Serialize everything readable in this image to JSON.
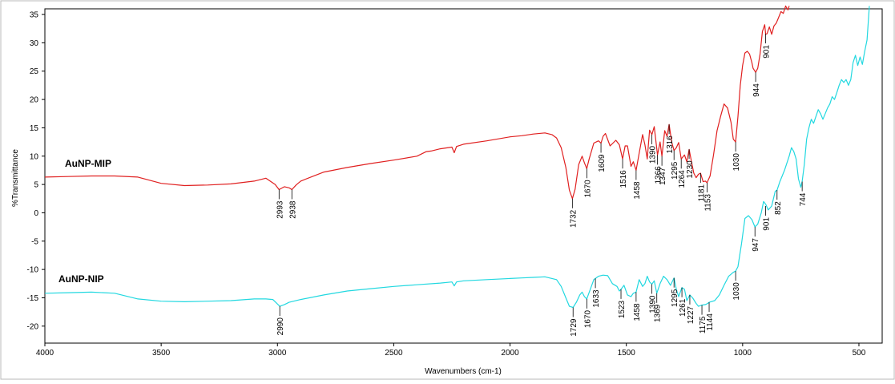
{
  "chart_data": {
    "type": "line",
    "xlabel": "Wavenumbers (cm-1)",
    "ylabel": "%Transmittance",
    "xlim": [
      4000,
      400
    ],
    "ylim": [
      -23,
      36
    ],
    "x_ticks": [
      "4000",
      "3500",
      "3000",
      "2500",
      "2000",
      "1500",
      "1000",
      "500"
    ],
    "y_ticks": [
      "35",
      "30",
      "25",
      "20",
      "15",
      "10",
      "5",
      "0",
      "-5",
      "-10",
      "-15",
      "-20"
    ],
    "colors": {
      "mip": "#e02020",
      "nip": "#22d8e0"
    },
    "series": [
      {
        "name": "AuNP-MIP",
        "color": "#e02020",
        "x": [
          4000,
          3900,
          3800,
          3700,
          3600,
          3500,
          3400,
          3300,
          3200,
          3100,
          3050,
          3010,
          2993,
          2970,
          2950,
          2938,
          2920,
          2900,
          2850,
          2800,
          2700,
          2600,
          2500,
          2400,
          2360,
          2340,
          2300,
          2250,
          2240,
          2230,
          2200,
          2100,
          2000,
          1950,
          1900,
          1850,
          1820,
          1800,
          1780,
          1760,
          1745,
          1732,
          1720,
          1705,
          1690,
          1680,
          1670,
          1660,
          1640,
          1620,
          1609,
          1600,
          1590,
          1570,
          1545,
          1530,
          1516,
          1505,
          1495,
          1480,
          1470,
          1458,
          1445,
          1430,
          1420,
          1410,
          1400,
          1390,
          1380,
          1366,
          1355,
          1347,
          1335,
          1325,
          1316,
          1305,
          1295,
          1285,
          1275,
          1264,
          1250,
          1240,
          1230,
          1220,
          1210,
          1200,
          1190,
          1181,
          1170,
          1160,
          1153,
          1140,
          1125,
          1110,
          1095,
          1080,
          1065,
          1050,
          1040,
          1030,
          1020,
          1010,
          1000,
          990,
          980,
          970,
          960,
          955,
          944,
          935,
          925,
          915,
          905,
          901,
          895,
          885,
          875,
          865,
          855,
          845,
          835,
          825,
          815,
          805,
          800
        ],
        "y": [
          6.3,
          6.4,
          6.5,
          6.5,
          6.3,
          5.2,
          4.8,
          4.9,
          5.1,
          5.6,
          6.1,
          5.0,
          4.1,
          4.6,
          4.4,
          4.1,
          4.9,
          5.6,
          6.4,
          7.2,
          8.0,
          8.7,
          9.3,
          10.0,
          10.8,
          10.9,
          11.3,
          11.6,
          10.6,
          11.7,
          12.1,
          12.7,
          13.4,
          13.6,
          13.9,
          14.1,
          13.8,
          13.2,
          11.5,
          8.0,
          4.0,
          2.5,
          4.2,
          8.5,
          10.0,
          8.8,
          7.8,
          9.5,
          12.3,
          12.7,
          12.3,
          13.5,
          14.0,
          11.8,
          12.8,
          12.0,
          9.5,
          11.8,
          11.8,
          8.2,
          9.0,
          7.5,
          10.5,
          13.8,
          12.0,
          9.5,
          14.6,
          13.8,
          15.2,
          10.2,
          12.5,
          10.0,
          14.5,
          13.5,
          15.6,
          12.5,
          11.0,
          11.5,
          12.4,
          9.5,
          10.2,
          9.0,
          11.2,
          9.0,
          7.0,
          6.2,
          6.8,
          7.0,
          5.5,
          5.6,
          5.3,
          6.5,
          10.2,
          14.5,
          17.0,
          19.2,
          18.5,
          16.0,
          13.0,
          12.5,
          17.0,
          22.5,
          26.0,
          28.2,
          28.5,
          28.0,
          26.5,
          25.5,
          24.8,
          25.5,
          28.0,
          32.0,
          33.2,
          31.5,
          31.6,
          32.8,
          31.5,
          33.0,
          33.5,
          34.5,
          35.5,
          35.2,
          36.5,
          35.8,
          36.5
        ]
      },
      {
        "name": "AuNP-NIP",
        "color": "#22d8e0",
        "x": [
          4000,
          3900,
          3800,
          3700,
          3600,
          3500,
          3400,
          3300,
          3200,
          3100,
          3050,
          3020,
          2990,
          2970,
          2950,
          2900,
          2800,
          2700,
          2600,
          2500,
          2400,
          2300,
          2250,
          2240,
          2230,
          2200,
          2100,
          2000,
          1950,
          1900,
          1850,
          1800,
          1780,
          1760,
          1745,
          1729,
          1715,
          1700,
          1690,
          1680,
          1670,
          1655,
          1640,
          1633,
          1620,
          1600,
          1580,
          1560,
          1540,
          1530,
          1523,
          1510,
          1495,
          1480,
          1470,
          1458,
          1445,
          1430,
          1420,
          1410,
          1400,
          1390,
          1380,
          1369,
          1355,
          1340,
          1325,
          1310,
          1295,
          1285,
          1275,
          1261,
          1250,
          1240,
          1227,
          1215,
          1200,
          1190,
          1175,
          1160,
          1150,
          1144,
          1120,
          1100,
          1080,
          1060,
          1040,
          1030,
          1020,
          1005,
          990,
          975,
          960,
          947,
          935,
          920,
          910,
          901,
          890,
          875,
          860,
          852,
          840,
          820,
          800,
          790,
          780,
          770,
          760,
          750,
          744,
          735,
          725,
          715,
          705,
          695,
          685,
          675,
          665,
          655,
          645,
          635,
          625,
          615,
          605,
          595,
          585,
          575,
          565,
          555,
          545,
          535,
          525,
          515,
          505,
          495,
          485,
          475,
          465,
          455
        ],
        "y": [
          -14.2,
          -14.1,
          -14.0,
          -14.2,
          -15.2,
          -15.6,
          -15.7,
          -15.6,
          -15.5,
          -15.2,
          -15.2,
          -15.3,
          -16.5,
          -16.2,
          -15.8,
          -15.3,
          -14.5,
          -13.8,
          -13.4,
          -13.0,
          -12.7,
          -12.4,
          -12.2,
          -12.9,
          -12.2,
          -12.0,
          -11.8,
          -11.6,
          -11.5,
          -11.4,
          -11.3,
          -11.8,
          -13.0,
          -15.0,
          -16.5,
          -16.7,
          -15.8,
          -14.5,
          -14.0,
          -14.8,
          -15.2,
          -13.5,
          -11.8,
          -11.6,
          -11.2,
          -11.0,
          -11.1,
          -12.5,
          -13.0,
          -13.8,
          -13.5,
          -12.8,
          -14.5,
          -14.8,
          -14.2,
          -14.0,
          -11.8,
          -13.0,
          -12.5,
          -11.2,
          -12.2,
          -12.6,
          -12.0,
          -14.2,
          -12.5,
          -11.2,
          -11.8,
          -12.8,
          -11.5,
          -13.5,
          -14.8,
          -13.2,
          -13.5,
          -15.5,
          -14.5,
          -15.0,
          -16.0,
          -16.5,
          -16.3,
          -16.2,
          -16.0,
          -15.8,
          -15.5,
          -14.5,
          -12.8,
          -11.2,
          -10.5,
          -10.3,
          -9.5,
          -5.5,
          -1.0,
          -0.5,
          -1.2,
          -2.5,
          -2.0,
          0.0,
          2.0,
          1.5,
          0.5,
          1.2,
          3.8,
          4.0,
          5.5,
          7.5,
          10.0,
          11.5,
          10.8,
          9.5,
          6.0,
          4.5,
          5.5,
          8.5,
          13.0,
          15.0,
          16.5,
          15.8,
          17.0,
          18.2,
          17.5,
          16.5,
          17.5,
          18.5,
          19.2,
          20.5,
          20.0,
          21.2,
          22.5,
          23.5,
          23.0,
          23.5,
          22.5,
          23.5,
          26.5,
          27.8,
          26.0,
          27.5,
          26.2,
          28.5,
          30.5,
          36.5
        ]
      }
    ],
    "peak_labels": {
      "mip": [
        {
          "x": 2993,
          "y": 4.1,
          "label": "2993"
        },
        {
          "x": 2938,
          "y": 4.1,
          "label": "2938"
        },
        {
          "x": 1732,
          "y": 2.5,
          "label": "1732"
        },
        {
          "x": 1670,
          "y": 7.8,
          "label": "1670"
        },
        {
          "x": 1609,
          "y": 12.3,
          "label": "1609"
        },
        {
          "x": 1516,
          "y": 9.5,
          "label": "1516"
        },
        {
          "x": 1458,
          "y": 7.5,
          "label": "1458"
        },
        {
          "x": 1390,
          "y": 13.8,
          "label": "1390"
        },
        {
          "x": 1366,
          "y": 10.2,
          "label": "1366"
        },
        {
          "x": 1347,
          "y": 10.0,
          "label": "1347"
        },
        {
          "x": 1316,
          "y": 15.6,
          "label": "1316"
        },
        {
          "x": 1295,
          "y": 11.0,
          "label": "1295"
        },
        {
          "x": 1264,
          "y": 9.5,
          "label": "1264"
        },
        {
          "x": 1230,
          "y": 11.2,
          "label": "1230"
        },
        {
          "x": 1181,
          "y": 7.0,
          "label": "1181"
        },
        {
          "x": 1153,
          "y": 5.3,
          "label": "1153"
        },
        {
          "x": 1030,
          "y": 12.5,
          "label": "1030"
        },
        {
          "x": 944,
          "y": 24.8,
          "label": "944"
        },
        {
          "x": 901,
          "y": 31.6,
          "label": "901"
        }
      ],
      "nip": [
        {
          "x": 2990,
          "y": -16.5,
          "label": "2990"
        },
        {
          "x": 1729,
          "y": -16.7,
          "label": "1729"
        },
        {
          "x": 1670,
          "y": -15.2,
          "label": "1670"
        },
        {
          "x": 1633,
          "y": -11.6,
          "label": "1633"
        },
        {
          "x": 1523,
          "y": -13.5,
          "label": "1523"
        },
        {
          "x": 1458,
          "y": -14.0,
          "label": "1458"
        },
        {
          "x": 1390,
          "y": -12.6,
          "label": "1390"
        },
        {
          "x": 1369,
          "y": -14.2,
          "label": "1369"
        },
        {
          "x": 1295,
          "y": -11.5,
          "label": "1295"
        },
        {
          "x": 1261,
          "y": -13.2,
          "label": "1261"
        },
        {
          "x": 1227,
          "y": -14.5,
          "label": "1227"
        },
        {
          "x": 1175,
          "y": -16.3,
          "label": "1175"
        },
        {
          "x": 1144,
          "y": -15.8,
          "label": "1144"
        },
        {
          "x": 1030,
          "y": -10.3,
          "label": "1030"
        },
        {
          "x": 947,
          "y": -2.5,
          "label": "947"
        },
        {
          "x": 901,
          "y": 1.2,
          "label": "901"
        },
        {
          "x": 852,
          "y": 4.0,
          "label": "852"
        },
        {
          "x": 744,
          "y": 5.5,
          "label": "744"
        }
      ]
    }
  }
}
